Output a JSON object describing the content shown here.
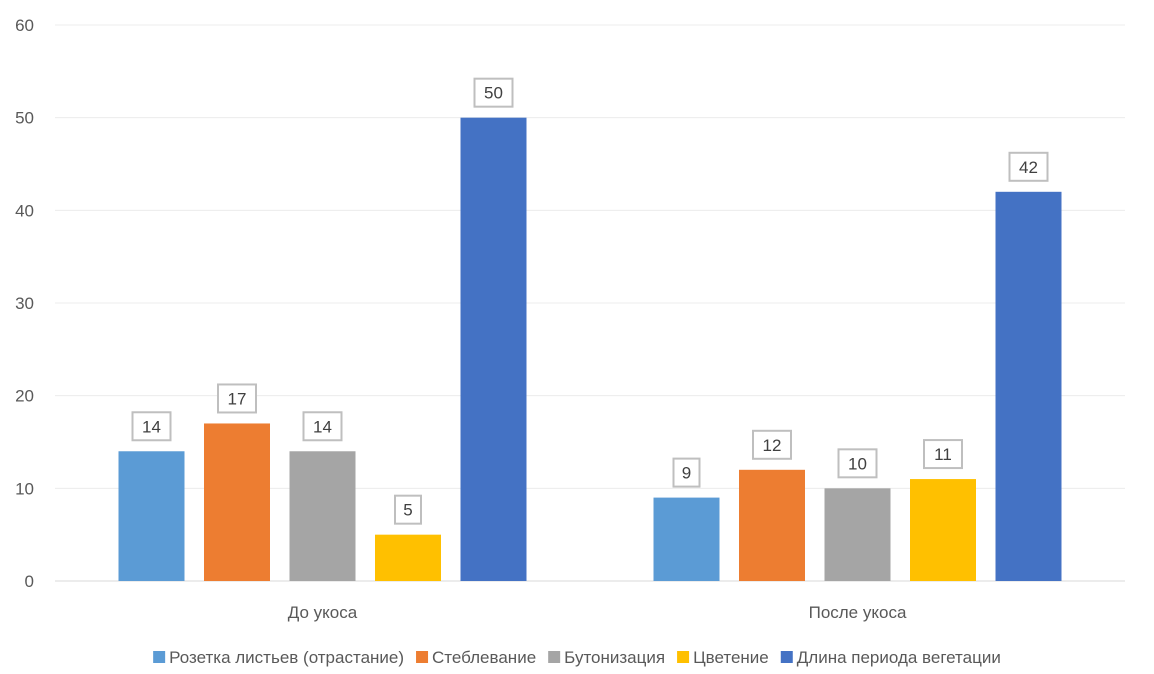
{
  "chart_data": {
    "type": "bar",
    "categories": [
      "До укоса",
      "После укоса"
    ],
    "series": [
      {
        "name": "Розетка листьев (отрастание)",
        "values": [
          14,
          9
        ],
        "color": "#5B9BD5"
      },
      {
        "name": "Стеблевание",
        "values": [
          17,
          12
        ],
        "color": "#ED7D31"
      },
      {
        "name": "Бутонизация",
        "values": [
          14,
          10
        ],
        "color": "#A5A5A5"
      },
      {
        "name": "Цветение",
        "values": [
          5,
          11
        ],
        "color": "#FFC000"
      },
      {
        "name": "Длина периода вегетации",
        "values": [
          50,
          42
        ],
        "color": "#4472C4"
      }
    ],
    "ylim": [
      0,
      60
    ],
    "yticks": [
      0,
      10,
      20,
      30,
      40,
      50,
      60
    ],
    "grid": true,
    "legend": "bottom",
    "data_labels": true
  }
}
